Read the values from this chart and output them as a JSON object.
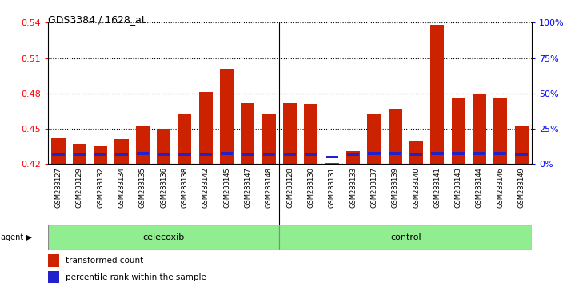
{
  "title": "GDS3384 / 1628_at",
  "samples": [
    "GSM283127",
    "GSM283129",
    "GSM283132",
    "GSM283134",
    "GSM283135",
    "GSM283136",
    "GSM283138",
    "GSM283142",
    "GSM283145",
    "GSM283147",
    "GSM283148",
    "GSM283128",
    "GSM283130",
    "GSM283131",
    "GSM283133",
    "GSM283137",
    "GSM283139",
    "GSM283140",
    "GSM283141",
    "GSM283143",
    "GSM283144",
    "GSM283146",
    "GSM283149"
  ],
  "red_values": [
    0.442,
    0.437,
    0.435,
    0.441,
    0.453,
    0.45,
    0.463,
    0.481,
    0.501,
    0.472,
    0.463,
    0.472,
    0.471,
    0.421,
    0.431,
    0.463,
    0.467,
    0.44,
    0.538,
    0.476,
    0.48,
    0.476,
    0.452
  ],
  "blue_values": [
    0.428,
    0.428,
    0.428,
    0.428,
    0.429,
    0.428,
    0.428,
    0.428,
    0.429,
    0.428,
    0.428,
    0.428,
    0.428,
    0.426,
    0.428,
    0.429,
    0.429,
    0.428,
    0.429,
    0.429,
    0.429,
    0.429,
    0.428
  ],
  "celecoxib_count": 11,
  "ylim": [
    0.42,
    0.54
  ],
  "yticks": [
    0.42,
    0.45,
    0.48,
    0.51,
    0.54
  ],
  "right_yticks": [
    0,
    25,
    50,
    75,
    100
  ],
  "bar_color": "#CC2200",
  "blue_color": "#2222CC",
  "green_color": "#90EE90",
  "gray_color": "#D0D0D0",
  "plot_bg": "#FFFFFF"
}
